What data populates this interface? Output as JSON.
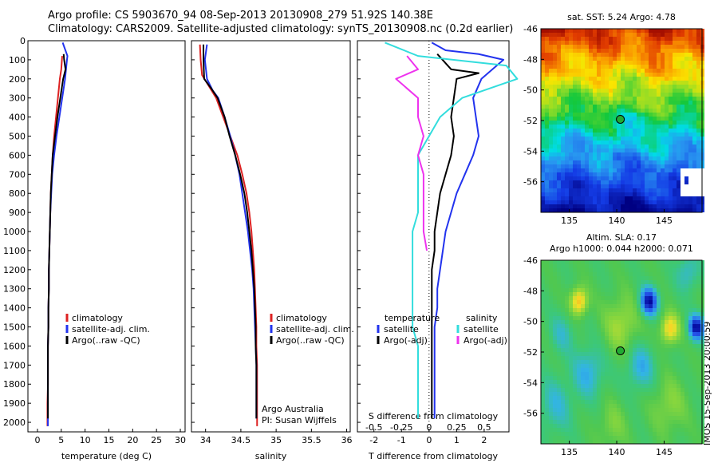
{
  "title_line1": "Argo profile: CS 5903670_94 08-Sep-2013 20130908_279 51.92S 140.38E",
  "title_line2": "Climatology: CARS2009. Satellite-adjusted climatology: synTS_20130908.nc (0.2d earlier)",
  "side_stamp": "IMOS 15-Sep-2013 20:00:59",
  "chart_data": [
    {
      "id": "temperature",
      "type": "line",
      "xlabel": "temperature (deg C)",
      "xlim": [
        -2,
        31
      ],
      "ylim": [
        0,
        2050
      ],
      "y_inverted": true,
      "xticks": [
        0,
        5,
        10,
        15,
        20,
        25,
        30
      ],
      "yticks": [
        0,
        100,
        200,
        300,
        400,
        500,
        600,
        700,
        800,
        900,
        1000,
        1100,
        1200,
        1300,
        1400,
        1500,
        1600,
        1700,
        1800,
        1900,
        2000
      ],
      "legend": [
        "climatology",
        "satellite-adj. clim.",
        "Argo(..raw -QC)"
      ],
      "legend_colors": [
        "#dd2222",
        "#2233ee",
        "#000000"
      ],
      "series": [
        {
          "name": "climatology",
          "color": "#dd2222",
          "x": [
            5.2,
            5.0,
            4.7,
            4.3,
            3.9,
            3.5,
            3.2,
            3.0,
            2.8,
            2.7,
            2.6,
            2.5,
            2.4,
            2.4,
            2.3,
            2.3,
            2.2,
            2.2,
            2.2,
            2.1,
            2.1
          ],
          "y": [
            80,
            150,
            200,
            300,
            400,
            500,
            600,
            700,
            800,
            900,
            1000,
            1100,
            1200,
            1300,
            1400,
            1500,
            1600,
            1700,
            1800,
            1900,
            2020
          ]
        },
        {
          "name": "satellite-adj. clim.",
          "color": "#2233ee",
          "x": [
            5.3,
            6.3,
            6.2,
            5.8,
            5.2,
            4.6,
            4.0,
            3.5,
            3.1,
            2.9,
            2.7,
            2.6,
            2.5,
            2.4,
            2.4,
            2.3,
            2.3,
            2.2,
            2.2,
            2.2,
            2.2
          ],
          "y": [
            10,
            80,
            100,
            200,
            300,
            400,
            500,
            600,
            700,
            800,
            900,
            1000,
            1100,
            1200,
            1300,
            1400,
            1500,
            1600,
            1700,
            1800,
            2020
          ]
        },
        {
          "name": "Argo(..raw -QC)",
          "color": "#000000",
          "x": [
            5.5,
            5.6,
            5.9,
            5.4,
            4.8,
            4.2,
            3.7,
            3.2,
            3.0,
            2.8,
            2.7,
            2.6,
            2.5,
            2.4,
            2.4,
            2.3,
            2.3,
            2.2,
            2.2,
            2.2
          ],
          "y": [
            70,
            100,
            150,
            200,
            300,
            400,
            500,
            600,
            700,
            800,
            900,
            1000,
            1100,
            1200,
            1300,
            1400,
            1500,
            1600,
            1700,
            1980
          ]
        }
      ]
    },
    {
      "id": "salinity",
      "type": "line",
      "xlabel": "salinity",
      "xlim": [
        33.8,
        36.05
      ],
      "ylim": [
        0,
        2050
      ],
      "y_inverted": true,
      "xticks": [
        34,
        34.5,
        35,
        35.5,
        36
      ],
      "xticklabels": [
        "34",
        "34.5",
        "35",
        "35.5",
        "36"
      ],
      "legend": [
        "climatology",
        "satellite-adj. clim.",
        "Argo(..raw -QC)"
      ],
      "legend_colors": [
        "#dd2222",
        "#2233ee",
        "#000000"
      ],
      "annotation": [
        "Argo Australia",
        "PI: Susan Wijffels"
      ],
      "series": [
        {
          "name": "climatology",
          "color": "#dd2222",
          "x": [
            33.92,
            33.93,
            33.95,
            34.05,
            34.15,
            34.25,
            34.35,
            34.45,
            34.52,
            34.58,
            34.62,
            34.65,
            34.67,
            34.69,
            34.7,
            34.71,
            34.72,
            34.72,
            34.73,
            34.73,
            34.73
          ],
          "y": [
            20,
            100,
            180,
            240,
            300,
            400,
            500,
            600,
            700,
            800,
            900,
            1000,
            1100,
            1200,
            1300,
            1400,
            1500,
            1600,
            1700,
            1800,
            2020
          ]
        },
        {
          "name": "satellite-adj. clim.",
          "color": "#2233ee",
          "x": [
            34.02,
            33.99,
            34.02,
            34.1,
            34.18,
            34.27,
            34.35,
            34.42,
            34.48,
            34.52,
            34.56,
            34.6,
            34.63,
            34.66,
            34.68,
            34.69,
            34.7,
            34.71,
            34.72,
            34.72
          ],
          "y": [
            20,
            100,
            200,
            260,
            300,
            400,
            500,
            600,
            700,
            800,
            900,
            1000,
            1100,
            1200,
            1300,
            1400,
            1500,
            1600,
            1700,
            1980
          ]
        },
        {
          "name": "Argo(..raw -QC)",
          "color": "#000000",
          "x": [
            33.97,
            33.97,
            33.98,
            34.08,
            34.17,
            34.27,
            34.34,
            34.42,
            34.49,
            34.55,
            34.59,
            34.62,
            34.65,
            34.67,
            34.69,
            34.7,
            34.71,
            34.71,
            34.72,
            34.72
          ],
          "y": [
            20,
            100,
            200,
            250,
            300,
            400,
            500,
            600,
            700,
            800,
            900,
            1000,
            1100,
            1200,
            1300,
            1400,
            1500,
            1600,
            1700,
            1980
          ]
        }
      ]
    },
    {
      "id": "difference",
      "type": "line",
      "xlabel": "T difference from climatology",
      "top_label": "S difference from climatology",
      "xlim": [
        -2.6,
        2.9
      ],
      "ylim": [
        0,
        2050
      ],
      "y_inverted": true,
      "xticks": [
        -2,
        -1,
        0,
        1,
        2
      ],
      "s_xticks": [
        -0.5,
        -0.25,
        0,
        0.25,
        0.5
      ],
      "s_xticklabels": [
        "-0.5",
        "-0.25",
        "0",
        "0.25",
        "0.5"
      ],
      "legend_temperature_title": "temperature",
      "legend_salinity_title": "salinity",
      "legend_temperature": [
        "satellite",
        "Argo(-adj)"
      ],
      "legend_salinity": [
        "satellite",
        "Argo(-adj)"
      ],
      "legend_temperature_colors": [
        "#2233ee",
        "#000000"
      ],
      "legend_salinity_colors": [
        "#33dddd",
        "#ee33ee"
      ],
      "series": [
        {
          "name": "T satellite",
          "color": "#2233ee",
          "x": [
            0.1,
            0.6,
            1.8,
            2.7,
            1.9,
            1.6,
            1.7,
            1.8,
            1.6,
            1.3,
            1.0,
            0.8,
            0.6,
            0.5,
            0.4,
            0.3,
            0.3,
            0.2,
            0.2,
            0.2,
            0.2
          ],
          "y": [
            10,
            50,
            70,
            100,
            200,
            300,
            400,
            500,
            600,
            700,
            800,
            900,
            1000,
            1100,
            1200,
            1300,
            1400,
            1500,
            1600,
            1700,
            1980
          ]
        },
        {
          "name": "T Argo(-adj)",
          "color": "#000000",
          "x": [
            0.3,
            0.8,
            1.8,
            1.0,
            0.9,
            0.8,
            0.9,
            0.8,
            0.6,
            0.4,
            0.3,
            0.2,
            0.2,
            0.1,
            0.1,
            0.1,
            0.1,
            0.1,
            0.1,
            0.1
          ],
          "y": [
            70,
            150,
            170,
            200,
            300,
            400,
            500,
            600,
            700,
            800,
            900,
            1000,
            1100,
            1200,
            1300,
            1400,
            1500,
            1600,
            1700,
            1980
          ]
        },
        {
          "name": "S satellite",
          "color": "#33dddd",
          "x": [
            -0.4,
            -0.1,
            0.7,
            0.8,
            0.3,
            0.1,
            0.0,
            -0.1,
            -0.1,
            -0.1,
            -0.1,
            -0.15,
            -0.15,
            -0.15,
            -0.15,
            -0.15,
            -0.15,
            -0.1,
            -0.1,
            -0.1
          ],
          "y": [
            10,
            80,
            130,
            200,
            300,
            400,
            500,
            600,
            700,
            800,
            900,
            1000,
            1100,
            1200,
            1300,
            1400,
            1500,
            1600,
            1700,
            1980
          ]
        },
        {
          "name": "S Argo(-adj)",
          "color": "#ee33ee",
          "x": [
            -0.2,
            -0.1,
            -0.3,
            -0.1,
            -0.1,
            -0.05,
            -0.1,
            -0.05,
            -0.05,
            -0.05,
            -0.05,
            -0.02
          ],
          "y": [
            80,
            150,
            200,
            300,
            400,
            500,
            600,
            700,
            800,
            900,
            1000,
            1100
          ]
        }
      ]
    },
    {
      "id": "sst-map",
      "type": "heatmap",
      "title": "sat. SST: 5.24  Argo: 4.78",
      "xlim": [
        132,
        149
      ],
      "ylim": [
        -58,
        -46
      ],
      "xticks": [
        135,
        140,
        145
      ],
      "yticks": [
        -46,
        -48,
        -50,
        -52,
        -54,
        -56
      ],
      "argo_position": {
        "lon": 140.38,
        "lat": -51.92
      }
    },
    {
      "id": "sla-map",
      "type": "heatmap",
      "title_line1": "Altim. SLA: 0.17",
      "title_line2": "Argo h1000: 0.044 h2000: 0.071",
      "xlim": [
        132,
        149
      ],
      "ylim": [
        -58,
        -46
      ],
      "xticks": [
        135,
        140,
        145
      ],
      "yticks": [
        -46,
        -48,
        -50,
        -52,
        -54,
        -56
      ],
      "argo_position": {
        "lon": 140.38,
        "lat": -51.92
      }
    }
  ]
}
